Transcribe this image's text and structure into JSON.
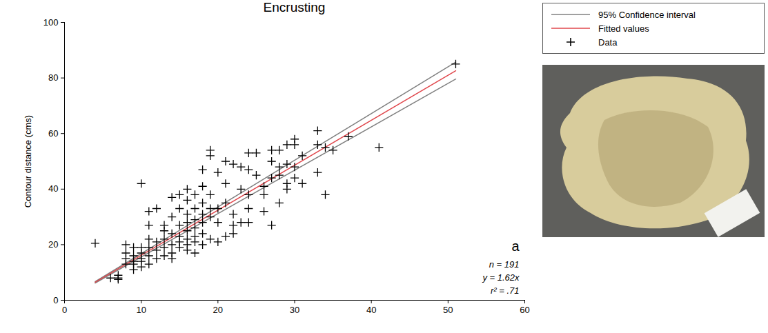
{
  "chart_data": {
    "type": "scatter",
    "title": "Encrusting",
    "y_label": "Contour distance (cms)",
    "xlim": [
      0,
      60
    ],
    "xticks": [
      0,
      10,
      20,
      30,
      40,
      50,
      60
    ],
    "ylim": [
      0,
      100
    ],
    "yticks": [
      0,
      20,
      40,
      60,
      80,
      100
    ],
    "legend": "top-right",
    "annotations": [
      "a",
      "n = 191",
      "y = 1.62x",
      "r² = .71"
    ],
    "series": [
      {
        "name": "95% Confidence interval",
        "type": "band",
        "color": "#808080",
        "x": [
          4,
          51
        ],
        "lower": [
          6.2,
          79.6
        ],
        "upper": [
          6.7,
          85.7
        ]
      },
      {
        "name": "Fitted values",
        "type": "line",
        "color": "#e0474c",
        "x": [
          4,
          51
        ],
        "values": [
          6.48,
          82.62
        ]
      },
      {
        "name": "Data",
        "type": "scatter",
        "marker": "plus",
        "color": "#000000",
        "x": [
          4,
          6,
          7,
          7,
          7,
          8,
          8,
          8,
          8,
          9,
          9,
          9,
          9,
          9,
          10,
          10,
          10,
          10,
          10,
          10,
          11,
          11,
          11,
          11,
          11,
          11,
          12,
          12,
          12,
          12,
          13,
          13,
          13,
          13,
          13,
          14,
          14,
          14,
          14,
          14,
          14,
          15,
          15,
          15,
          15,
          15,
          15,
          16,
          16,
          16,
          16,
          16,
          16,
          16,
          16,
          17,
          17,
          17,
          17,
          17,
          17,
          17,
          18,
          18,
          18,
          18,
          18,
          18,
          18,
          19,
          19,
          19,
          19,
          19,
          19,
          20,
          20,
          20,
          20,
          21,
          21,
          21,
          21,
          22,
          22,
          22,
          22,
          23,
          23,
          23,
          24,
          24,
          24,
          24,
          24,
          25,
          25,
          26,
          26,
          26,
          27,
          27,
          27,
          27,
          28,
          28,
          28,
          28,
          29,
          29,
          29,
          29,
          30,
          30,
          30,
          30,
          31,
          31,
          33,
          33,
          33,
          34,
          34,
          35,
          37,
          41,
          51
        ],
        "values": [
          20.5,
          8,
          8,
          7.5,
          9,
          13,
          15,
          20,
          17,
          11,
          13,
          16,
          19,
          14,
          42,
          12,
          15,
          17,
          19,
          14,
          32,
          27,
          22,
          13,
          16,
          19,
          33,
          15,
          21,
          18,
          25,
          16,
          19,
          22,
          27,
          37,
          30,
          24,
          17,
          20,
          15,
          38,
          33,
          27,
          23,
          19,
          21,
          40,
          36,
          31,
          28,
          25,
          22,
          18,
          20,
          38,
          33,
          29,
          26,
          23,
          21,
          17,
          47,
          41,
          35,
          31,
          28,
          24,
          20,
          54,
          52,
          38,
          33,
          30,
          22,
          46,
          33,
          28,
          21,
          50,
          42,
          35,
          23,
          49,
          31,
          27,
          24,
          48,
          40,
          28,
          53,
          47,
          38,
          33,
          28,
          53,
          45,
          32,
          38,
          41,
          54,
          50,
          27,
          44,
          54,
          48,
          45,
          35,
          56,
          49,
          40,
          42,
          58,
          56,
          48,
          44,
          52,
          42,
          61,
          56,
          46,
          55,
          38,
          54,
          59,
          55,
          85
        ]
      }
    ]
  }
}
